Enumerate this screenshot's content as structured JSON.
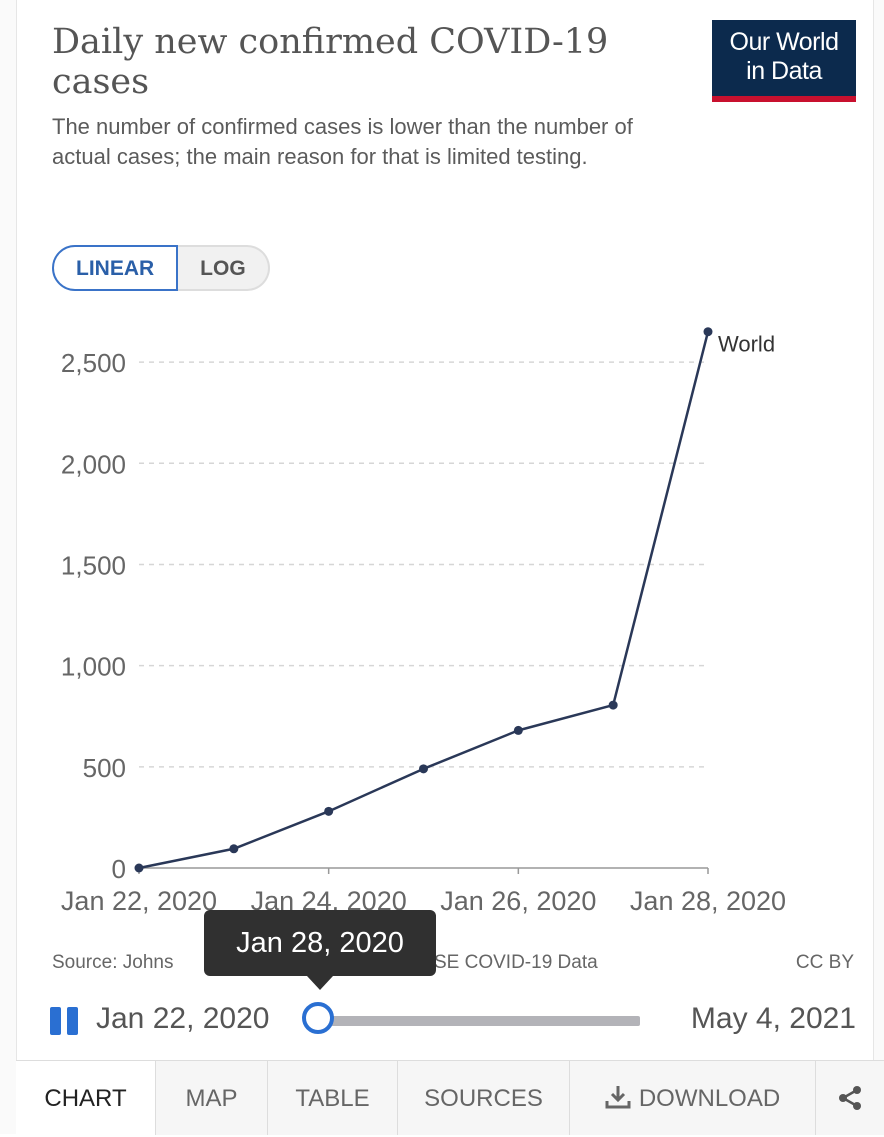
{
  "header": {
    "title": "Daily new confirmed COVID-19 cases",
    "subtitle": "The number of confirmed cases is lower than the number of actual cases; the main reason for that is limited testing.",
    "logo_line1": "Our World",
    "logo_line2": "in Data"
  },
  "scale_toggle": {
    "linear": "LINEAR",
    "log": "LOG",
    "selected": "LINEAR"
  },
  "chart_data": {
    "type": "line",
    "title": "Daily new confirmed COVID-19 cases",
    "xlabel": "",
    "ylabel": "",
    "x": [
      "Jan 22, 2020",
      "Jan 23, 2020",
      "Jan 24, 2020",
      "Jan 25, 2020",
      "Jan 26, 2020",
      "Jan 27, 2020",
      "Jan 28, 2020"
    ],
    "x_tick_labels": [
      "Jan 22, 2020",
      "Jan 24, 2020",
      "Jan 26, 2020",
      "Jan 28, 2020"
    ],
    "series": [
      {
        "name": "World",
        "values": [
          0,
          95,
          280,
          490,
          680,
          805,
          2650
        ],
        "color": "#2a3858"
      }
    ],
    "y_ticks": [
      0,
      500,
      1000,
      1500,
      2000,
      2500
    ],
    "y_tick_labels": [
      "0",
      "500",
      "1,000",
      "1,500",
      "2,000",
      "2,500"
    ],
    "ylim": [
      0,
      2750
    ],
    "grid": "horizontal dashed"
  },
  "footer": {
    "source_left": "Source: Johns",
    "source_right": "SE COVID-19 Data",
    "license": "CC BY"
  },
  "timeline": {
    "start": "Jan 22, 2020",
    "end": "May 4, 2021",
    "tooltip": "Jan 28, 2020",
    "position": 0.0
  },
  "tabs": [
    {
      "label": "CHART",
      "active": true
    },
    {
      "label": "MAP"
    },
    {
      "label": "TABLE"
    },
    {
      "label": "SOURCES"
    },
    {
      "label": "DOWNLOAD"
    }
  ],
  "colors": {
    "accent": "#2a6fd2",
    "line": "#2a3858",
    "logo_bg": "#0c2a4d",
    "logo_bar": "#c8102e"
  }
}
